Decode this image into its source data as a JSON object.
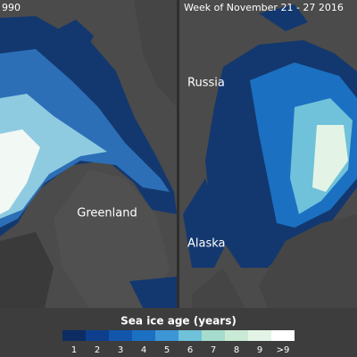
{
  "panels": [
    {
      "title": "990"
    },
    {
      "title": "Week of November 21 - 27 2016"
    }
  ],
  "places": [
    {
      "label": "Greenland"
    },
    {
      "label": "Russia"
    },
    {
      "label": "Alaska"
    }
  ],
  "legend": {
    "title": "Sea ice age (years)",
    "items": [
      {
        "label": "1",
        "color": "#0c2c63"
      },
      {
        "label": "2",
        "color": "#0e3f8e"
      },
      {
        "label": "3",
        "color": "#1156ab"
      },
      {
        "label": "4",
        "color": "#1b70c2"
      },
      {
        "label": "5",
        "color": "#3d96d6"
      },
      {
        "label": "6",
        "color": "#6fc2d9"
      },
      {
        "label": "7",
        "color": "#a5dccd"
      },
      {
        "label": "8",
        "color": "#c9ebd6"
      },
      {
        "label": "9",
        "color": "#e3f4e7"
      },
      {
        "label": ">9",
        "color": "#ffffff"
      }
    ]
  }
}
